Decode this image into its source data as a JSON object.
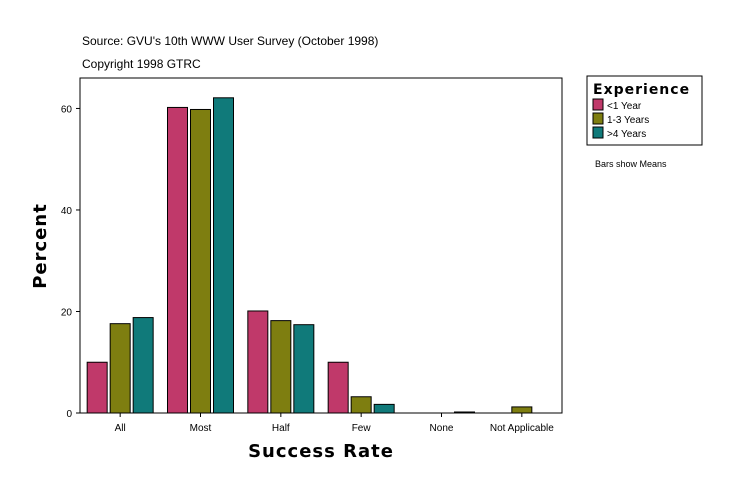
{
  "header": {
    "source": "Source: GVU's 10th WWW User Survey (October 1998)",
    "copyright": "Copyright 1998 GTRC"
  },
  "note": "Bars show Means",
  "chart_data": {
    "type": "bar",
    "xlabel": "Success Rate",
    "ylabel": "Percent",
    "categories": [
      "All",
      "Most",
      "Half",
      "Few",
      "None",
      "Not Applicable"
    ],
    "ylim": [
      0,
      66
    ],
    "yticks": [
      0,
      20,
      40,
      60
    ],
    "legend": {
      "title": "Experience",
      "placement": "right"
    },
    "series": [
      {
        "name": "<1 Year",
        "color": "#c0396a",
        "values": [
          10.0,
          60.2,
          20.1,
          10.0,
          0,
          0
        ]
      },
      {
        "name": "1-3 Years",
        "color": "#7e7e10",
        "values": [
          17.6,
          59.8,
          18.2,
          3.2,
          0,
          1.2
        ]
      },
      {
        "name": ">4 Years",
        "color": "#107a7a",
        "values": [
          18.8,
          62.1,
          17.4,
          1.7,
          0.2,
          0
        ]
      }
    ]
  }
}
